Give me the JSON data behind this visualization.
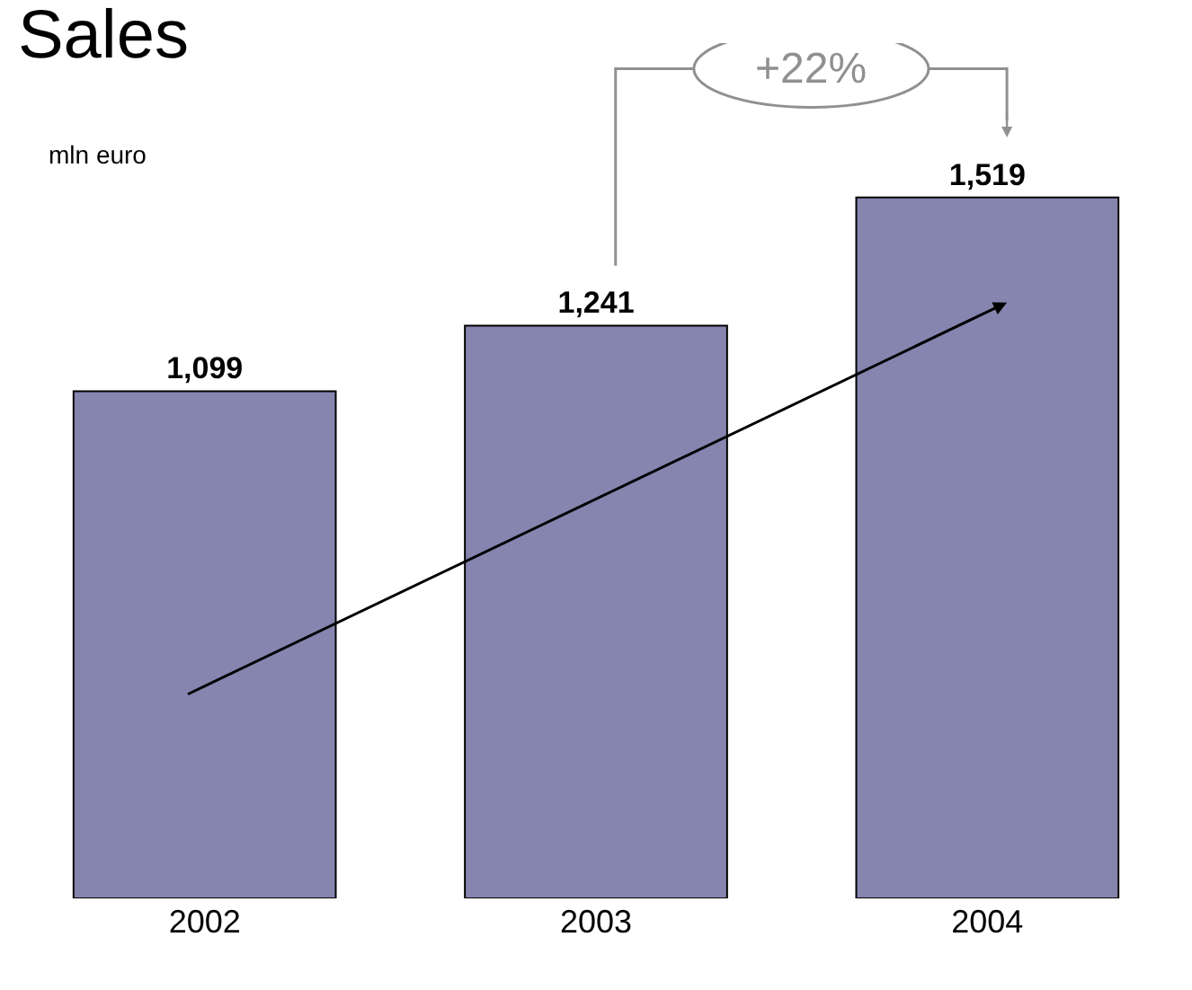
{
  "chart_data": {
    "type": "bar",
    "title": "Sales",
    "subtitle": "mln euro",
    "categories": [
      "2002",
      "2003",
      "2004"
    ],
    "values": [
      1099,
      1241,
      1519
    ],
    "color": "#8585b0",
    "value_labels": [
      "1,099",
      "1,241",
      "1,519"
    ],
    "annotations": [
      "+22%"
    ]
  }
}
